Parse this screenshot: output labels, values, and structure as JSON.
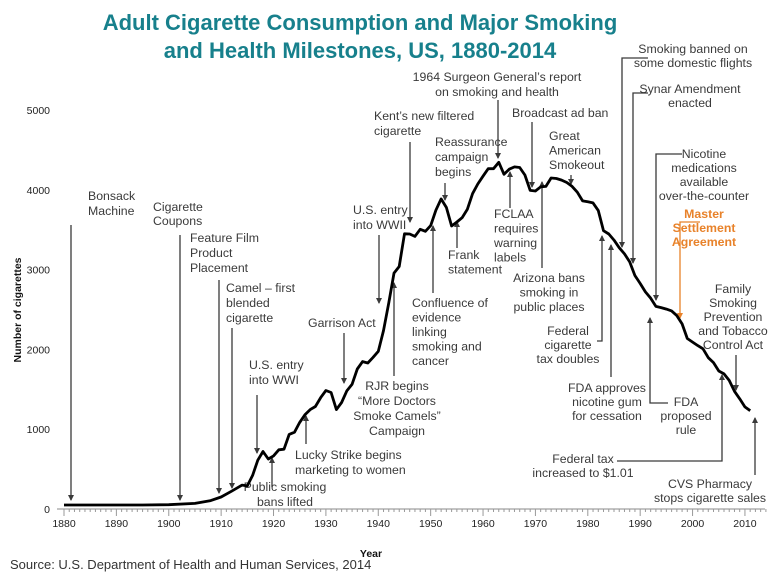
{
  "chart_data": {
    "type": "line",
    "title": [
      "Adult Cigarette Consumption and Major Smoking",
      "and Health Milestones, US, 1880-2014"
    ],
    "xlabel": "Year",
    "ylabel": "Number of cigarettes",
    "xlim": [
      1880,
      2014
    ],
    "ylim": [
      0,
      5000
    ],
    "xticks": [
      1880,
      1890,
      1900,
      1910,
      1920,
      1930,
      1940,
      1950,
      1960,
      1970,
      1980,
      1990,
      2000,
      2010
    ],
    "yticks": [
      0,
      1000,
      2000,
      3000,
      4000,
      5000
    ],
    "grid": false,
    "line_color": "#000000",
    "highlight_color": "#e8822a",
    "title_color": "#17808c",
    "x": [
      1880,
      1885,
      1890,
      1895,
      1900,
      1905,
      1908,
      1910,
      1912,
      1914,
      1915,
      1916,
      1917,
      1918,
      1919,
      1920,
      1921,
      1922,
      1923,
      1924,
      1925,
      1926,
      1927,
      1928,
      1929,
      1930,
      1931,
      1932,
      1933,
      1934,
      1935,
      1936,
      1937,
      1938,
      1939,
      1940,
      1941,
      1942,
      1943,
      1944,
      1945,
      1946,
      1947,
      1948,
      1949,
      1950,
      1951,
      1952,
      1953,
      1954,
      1955,
      1956,
      1957,
      1958,
      1959,
      1960,
      1961,
      1962,
      1963,
      1964,
      1965,
      1966,
      1967,
      1968,
      1969,
      1970,
      1971,
      1972,
      1973,
      1974,
      1975,
      1976,
      1977,
      1978,
      1979,
      1980,
      1981,
      1982,
      1983,
      1984,
      1985,
      1986,
      1987,
      1988,
      1989,
      1990,
      1991,
      1992,
      1993,
      1994,
      1995,
      1996,
      1997,
      1998,
      1999,
      2000,
      2001,
      2002,
      2003,
      2004,
      2005,
      2006,
      2007,
      2008,
      2009,
      2010,
      2011
    ],
    "y": [
      50,
      50,
      50,
      50,
      54,
      70,
      105,
      151,
      223,
      300,
      290,
      421,
      611,
      720,
      627,
      665,
      742,
      749,
      935,
      962,
      1085,
      1180,
      1245,
      1285,
      1396,
      1485,
      1460,
      1245,
      1334,
      1483,
      1564,
      1754,
      1847,
      1830,
      1900,
      1976,
      2236,
      2585,
      2956,
      3039,
      3449,
      3446,
      3416,
      3505,
      3480,
      3552,
      3744,
      3886,
      3778,
      3546,
      3597,
      3650,
      3755,
      3953,
      4073,
      4171,
      4266,
      4265,
      4345,
      4194,
      4258,
      4287,
      4280,
      4186,
      3993,
      3985,
      4037,
      4043,
      4148,
      4141,
      4122,
      4091,
      4043,
      3970,
      3861,
      3849,
      3836,
      3739,
      3488,
      3446,
      3370,
      3274,
      3197,
      3096,
      2926,
      2826,
      2720,
      2641,
      2539,
      2524,
      2505,
      2482,
      2423,
      2320,
      2136,
      2092,
      2048,
      2007,
      1896,
      1834,
      1729,
      1693,
      1611,
      1475,
      1381,
      1280,
      1232
    ],
    "annotations": [
      {
        "lines": [
          "Bonsack",
          "Machine"
        ]
      },
      {
        "lines": [
          "Cigarette",
          "Coupons"
        ]
      },
      {
        "lines": [
          "Feature Film",
          "Product",
          "Placement"
        ]
      },
      {
        "lines": [
          "Camel – first",
          "blended",
          "cigarette"
        ]
      },
      {
        "lines": [
          "U.S. entry",
          "into WWI"
        ]
      },
      {
        "lines": [
          "Public smoking",
          "bans lifted"
        ]
      },
      {
        "lines": [
          "Lucky Strike begins",
          "marketing to women"
        ]
      },
      {
        "lines": [
          "Garrison Act"
        ]
      },
      {
        "lines": [
          "U.S. entry",
          "into WWII"
        ]
      },
      {
        "lines": [
          "RJR begins",
          "“More Doctors",
          "Smoke Camels”",
          "Campaign"
        ]
      },
      {
        "lines": [
          "Kent’s new filtered",
          "cigarette"
        ]
      },
      {
        "lines": [
          "Reassurance",
          "campaign",
          "begins"
        ]
      },
      {
        "lines": [
          "Confluence of",
          "evidence",
          "linking",
          "smoking and",
          "cancer"
        ]
      },
      {
        "lines": [
          "Frank",
          "statement"
        ]
      },
      {
        "lines": [
          "1964 Surgeon General’s report",
          "on smoking and health"
        ]
      },
      {
        "lines": [
          "FCLAA",
          "requires",
          "warning",
          "labels"
        ]
      },
      {
        "lines": [
          "Broadcast ad ban"
        ]
      },
      {
        "lines": [
          "Great",
          "American",
          "Smokeout"
        ]
      },
      {
        "lines": [
          "Arizona bans",
          "smoking in",
          "public places"
        ]
      },
      {
        "lines": [
          "Federal",
          "cigarette",
          "tax doubles"
        ]
      },
      {
        "lines": [
          "FDA approves",
          "nicotine gum",
          "for cessation"
        ]
      },
      {
        "lines": [
          "Smoking banned on",
          "some domestic flights"
        ]
      },
      {
        "lines": [
          "Synar Amendment",
          "enacted"
        ]
      },
      {
        "lines": [
          "Nicotine",
          "medications",
          "available",
          "over-the-counter"
        ]
      },
      {
        "lines": [
          "Master",
          "Settlement",
          "Agreement"
        ],
        "highlight": true
      },
      {
        "lines": [
          "Family",
          "Smoking",
          "Prevention",
          "and Tobacco",
          "Control Act"
        ]
      },
      {
        "lines": [
          "FDA",
          "proposed",
          "rule"
        ]
      },
      {
        "lines": [
          "Federal tax",
          "increased to $1.01"
        ]
      },
      {
        "lines": [
          "CVS Pharmacy",
          "stops cigarette sales"
        ]
      }
    ]
  },
  "source": "Source: U.S. Department of Health and Human Services, 2014"
}
